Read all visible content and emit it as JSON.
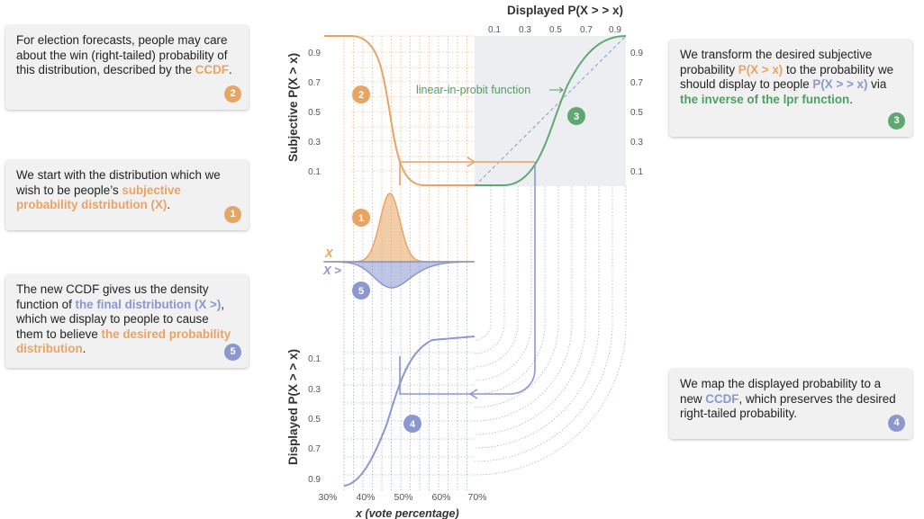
{
  "colors": {
    "orange": "#e8a463",
    "blue": "#8a98cf",
    "green": "#5fa872",
    "panel": "#eceef1"
  },
  "notes": {
    "n2": {
      "text_before": "For election forecasts, people may care about the win (right-tailed) probability of this distribution, described by the ",
      "highlight": "CCDF",
      "text_after": ".",
      "badge": "2"
    },
    "n1": {
      "text_before": "We start with the distribution which we wish to be people’s ",
      "highlight": "subjective probability distribution (X)",
      "text_after": ".",
      "badge": "1"
    },
    "n5": {
      "text_before": "The new CCDF gives us the density function of ",
      "highlight_blue": "the final distribution (X >)",
      "text_middle": ", which we display to people to cause them to believe ",
      "highlight_orange": "the desired probability distribution",
      "text_after": ".",
      "badge": "5"
    },
    "n3": {
      "text_a": "We transform the desired subjective probability ",
      "hl_a": "P(X > x)",
      "text_b": " to the probability we should display to people ",
      "hl_b": "P(X > > x)",
      "text_c": " via ",
      "hl_c": "the inverse of the lpr function",
      "text_d": ".",
      "badge": "3"
    },
    "n4": {
      "text_before": "We map the displayed probability to a new ",
      "highlight": "CCDF",
      "text_after": ", which preserves the desired right-tailed probability.",
      "badge": "4"
    }
  },
  "top_axis": {
    "title": "Displayed P(X > > x)",
    "ticks": [
      "0.1",
      "0.3",
      "0.5",
      "0.7",
      "0.9"
    ]
  },
  "left_axis_top": {
    "title": "Subjective P(X > x)",
    "ticks": [
      "0.9",
      "0.7",
      "0.5",
      "0.3",
      "0.1"
    ]
  },
  "right_axis": {
    "ticks": [
      "0.9",
      "0.7",
      "0.5",
      "0.3",
      "0.1"
    ]
  },
  "left_axis_bottom": {
    "title": "Displayed P(X > > x)",
    "ticks": [
      "0.1",
      "0.3",
      "0.5",
      "0.7",
      "0.9"
    ]
  },
  "x_axis": {
    "title": "x (vote percentage)",
    "ticks": [
      "30%",
      "40%",
      "50%",
      "60%",
      "70%"
    ]
  },
  "annotation": "linear-in-probit function",
  "dist_labels": {
    "x": "X",
    "x_final": "X >"
  },
  "step_badges": [
    "1",
    "2",
    "3",
    "4",
    "5"
  ]
}
